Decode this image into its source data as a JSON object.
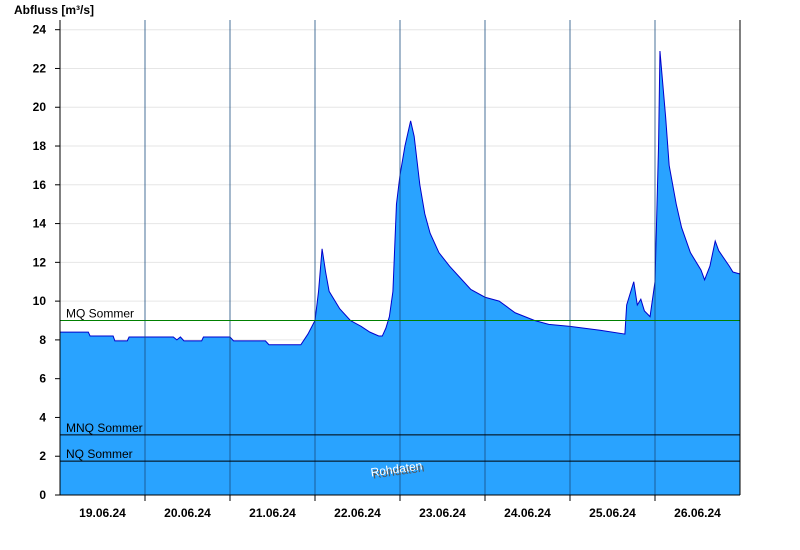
{
  "chart_data": {
    "type": "area",
    "ylabel": "Abfluss [m³/s]",
    "x": [
      0,
      8,
      8.5,
      15,
      15.5,
      19,
      19.5,
      32,
      33,
      34,
      35,
      40,
      40.5,
      48,
      49,
      58,
      59,
      68,
      70,
      72,
      73,
      74,
      75,
      76,
      79,
      82,
      85,
      87.5,
      90,
      91,
      92,
      93,
      94,
      95,
      96,
      97.4,
      99,
      100,
      101.6,
      103,
      104.5,
      107,
      110,
      113,
      116,
      120,
      124,
      128.5,
      134,
      138,
      144,
      152.5,
      159.5,
      160,
      162,
      163,
      164,
      165,
      166.6,
      168,
      169,
      169.4,
      171,
      172,
      174,
      175.5,
      178,
      181,
      182,
      183.5,
      185,
      186,
      189,
      190,
      192
    ],
    "series": [
      {
        "color": "#29a3ff",
        "line_color": "#0000cc",
        "values": [
          8.4,
          8.4,
          8.2,
          8.2,
          7.95,
          7.95,
          8.15,
          8.15,
          8.0,
          8.15,
          7.95,
          7.95,
          8.15,
          8.15,
          7.95,
          7.95,
          7.75,
          7.75,
          8.3,
          9.0,
          10.5,
          12.7,
          11.5,
          10.5,
          9.6,
          9.0,
          8.7,
          8.4,
          8.2,
          8.2,
          8.6,
          9.2,
          10.5,
          15,
          16.5,
          18,
          19.3,
          18.5,
          16,
          14.5,
          13.5,
          12.5,
          11.8,
          11.2,
          10.6,
          10.2,
          10.0,
          9.4,
          9.0,
          8.8,
          8.7,
          8.5,
          8.3,
          9.8,
          11.0,
          9.8,
          10.1,
          9.5,
          9.2,
          11,
          18,
          22.9,
          19.5,
          17,
          15,
          13.8,
          12.5,
          11.6,
          11.1,
          11.8,
          13.1,
          12.6,
          11.8,
          11.5,
          11.4
        ]
      }
    ],
    "xlim": [
      0,
      192
    ],
    "ylim": [
      0,
      24.5
    ],
    "yticks": [
      0,
      2,
      4,
      6,
      8,
      10,
      12,
      14,
      16,
      18,
      20,
      22,
      24
    ],
    "xticks": [
      {
        "value": 12,
        "label": "19.06.24"
      },
      {
        "value": 36,
        "label": "20.06.24"
      },
      {
        "value": 60,
        "label": "21.06.24"
      },
      {
        "value": 84,
        "label": "22.06.24"
      },
      {
        "value": 108,
        "label": "23.06.24"
      },
      {
        "value": 132,
        "label": "24.06.24"
      },
      {
        "value": 156,
        "label": "25.06.24"
      },
      {
        "value": 180,
        "label": "26.06.24"
      }
    ],
    "xgrid": [
      24,
      48,
      72,
      96,
      120,
      144,
      168
    ],
    "grid": true,
    "reference_lines": [
      {
        "name": "MQ Sommer",
        "value": 9.0,
        "color": "#008000"
      },
      {
        "name": "MNQ Sommer",
        "value": 3.1,
        "color": "#000000"
      },
      {
        "name": "NQ Sommer",
        "value": 1.75,
        "color": "#000000"
      }
    ],
    "watermark": "Rohdaten"
  }
}
